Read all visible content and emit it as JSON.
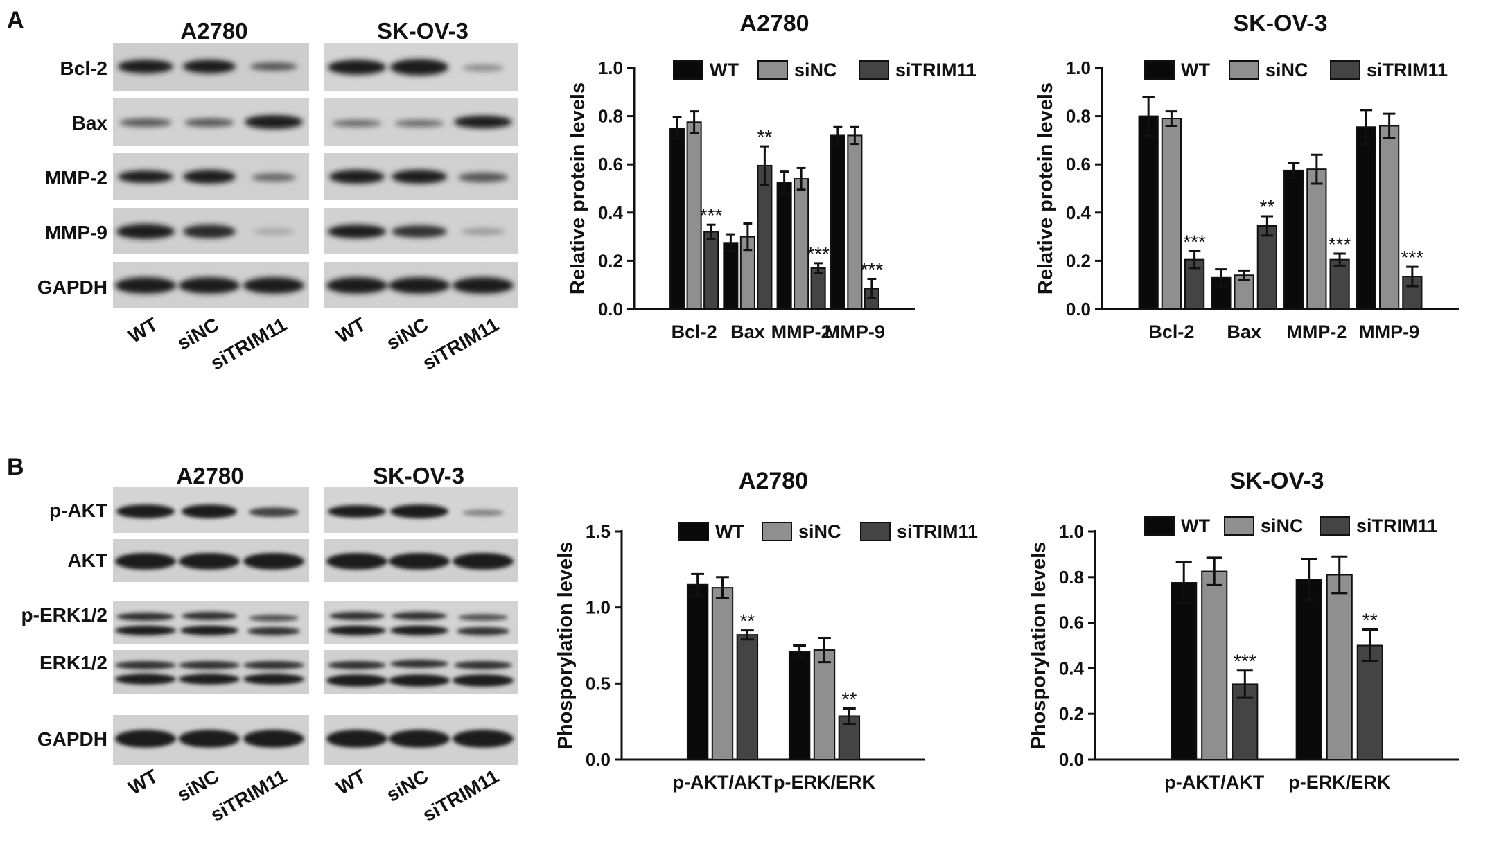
{
  "panels": [
    {
      "letter": "A",
      "blot": {
        "cell_lines": [
          "A2780",
          "SK-OV-3"
        ],
        "rows": [
          "Bcl-2",
          "Bax",
          "MMP-2",
          "MMP-9",
          "GAPDH"
        ],
        "lanes": [
          "WT",
          "siNC",
          "siTRIM11"
        ]
      }
    },
    {
      "letter": "B",
      "blot": {
        "cell_lines": [
          "A2780",
          "SK-OV-3"
        ],
        "rows": [
          "p-AKT",
          "AKT",
          "p-ERK1/2",
          "ERK1/2",
          "GAPDH"
        ],
        "lanes": [
          "WT",
          "siNC",
          "siTRIM11"
        ]
      }
    }
  ],
  "series_colors": [
    "#0a0a0a",
    "#8f8f8f",
    "#444444"
  ],
  "chart_data": [
    {
      "type": "bar",
      "title": "A2780",
      "ylabel": "Relative protein levels",
      "ylim": [
        0,
        1.0
      ],
      "yticks": [
        "0.0",
        "0.2",
        "0.4",
        "0.6",
        "0.8",
        "1.0"
      ],
      "ytick_values": [
        0,
        0.2,
        0.4,
        0.6,
        0.8,
        1.0
      ],
      "categories": [
        "Bcl-2",
        "Bax",
        "MMP-2",
        "MMP-9"
      ],
      "series": [
        {
          "name": "WT",
          "values": [
            0.75,
            0.275,
            0.525,
            0.72
          ],
          "errors": [
            0.045,
            0.035,
            0.045,
            0.035
          ]
        },
        {
          "name": "siNC",
          "values": [
            0.775,
            0.3,
            0.54,
            0.72
          ],
          "errors": [
            0.045,
            0.055,
            0.045,
            0.035
          ]
        },
        {
          "name": "siTRIM11",
          "values": [
            0.32,
            0.595,
            0.17,
            0.085
          ],
          "errors": [
            0.03,
            0.08,
            0.02,
            0.04
          ]
        }
      ],
      "annotations": [
        "***",
        "**",
        "***",
        "***"
      ],
      "legend": "top"
    },
    {
      "type": "bar",
      "title": "SK-OV-3",
      "ylabel": "Relative protein levels",
      "ylim": [
        0,
        1.0
      ],
      "yticks": [
        "0.0",
        "0.2",
        "0.4",
        "0.6",
        "0.8",
        "1.0"
      ],
      "ytick_values": [
        0,
        0.2,
        0.4,
        0.6,
        0.8,
        1.0
      ],
      "categories": [
        "Bcl-2",
        "Bax",
        "MMP-2",
        "MMP-9"
      ],
      "series": [
        {
          "name": "WT",
          "values": [
            0.8,
            0.13,
            0.575,
            0.755
          ],
          "errors": [
            0.08,
            0.035,
            0.03,
            0.07
          ]
        },
        {
          "name": "siNC",
          "values": [
            0.79,
            0.14,
            0.58,
            0.76
          ],
          "errors": [
            0.03,
            0.02,
            0.06,
            0.05
          ]
        },
        {
          "name": "siTRIM11",
          "values": [
            0.205,
            0.345,
            0.205,
            0.135
          ],
          "errors": [
            0.035,
            0.04,
            0.025,
            0.04
          ]
        }
      ],
      "annotations": [
        "***",
        "**",
        "***",
        "***"
      ],
      "legend": "top"
    },
    {
      "type": "bar",
      "title": "A2780",
      "ylabel": "Phosporylation levels",
      "ylim": [
        0,
        1.5
      ],
      "yticks": [
        "0.0",
        "0.5",
        "1.0",
        "1.5"
      ],
      "ytick_values": [
        0,
        0.5,
        1.0,
        1.5
      ],
      "categories": [
        "p-AKT/AKT",
        "p-ERK/ERK"
      ],
      "series": [
        {
          "name": "WT",
          "values": [
            1.15,
            0.71
          ],
          "errors": [
            0.07,
            0.04
          ]
        },
        {
          "name": "siNC",
          "values": [
            1.13,
            0.72
          ],
          "errors": [
            0.07,
            0.08
          ]
        },
        {
          "name": "siTRIM11",
          "values": [
            0.82,
            0.285
          ],
          "errors": [
            0.03,
            0.05
          ]
        }
      ],
      "annotations": [
        "**",
        "**"
      ],
      "legend": "top"
    },
    {
      "type": "bar",
      "title": "SK-OV-3",
      "ylabel": "Phosporylation levels",
      "ylim": [
        0,
        1.0
      ],
      "yticks": [
        "0.0",
        "0.2",
        "0.4",
        "0.6",
        "0.8",
        "1.0"
      ],
      "ytick_values": [
        0,
        0.2,
        0.4,
        0.6,
        0.8,
        1.0
      ],
      "categories": [
        "p-AKT/AKT",
        "p-ERK/ERK"
      ],
      "series": [
        {
          "name": "WT",
          "values": [
            0.775,
            0.79
          ],
          "errors": [
            0.09,
            0.09
          ]
        },
        {
          "name": "siNC",
          "values": [
            0.825,
            0.81
          ],
          "errors": [
            0.06,
            0.08
          ]
        },
        {
          "name": "siTRIM11",
          "values": [
            0.33,
            0.5
          ],
          "errors": [
            0.06,
            0.07
          ]
        }
      ],
      "annotations": [
        "***",
        "**"
      ],
      "legend": "top"
    }
  ]
}
